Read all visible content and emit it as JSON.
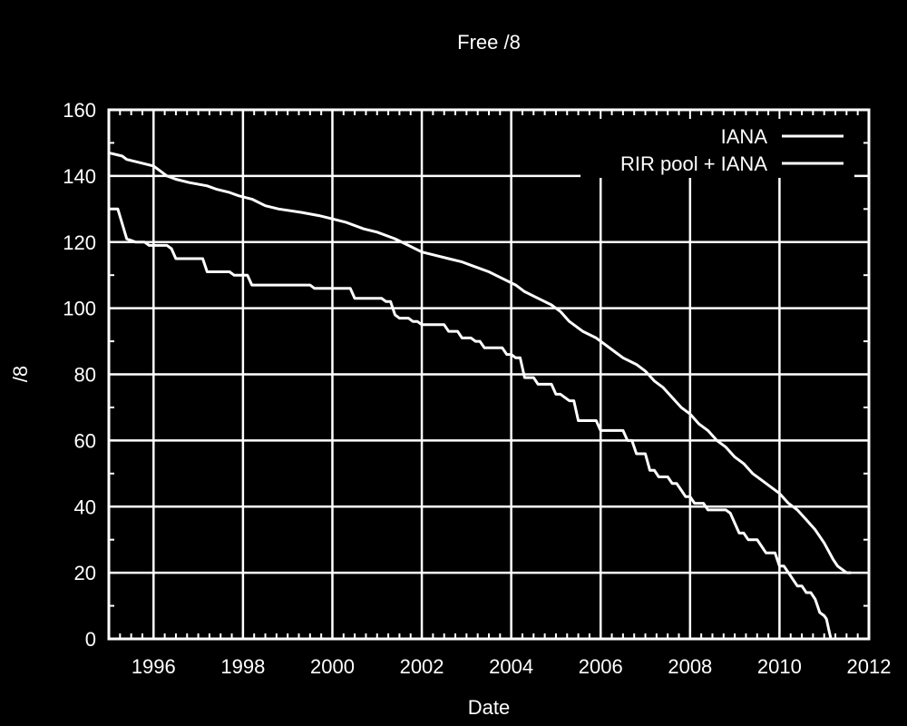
{
  "chart_data": {
    "type": "line",
    "title": "Free /8",
    "xlabel": "Date",
    "ylabel": "/8",
    "xlim": [
      1995,
      2012
    ],
    "ylim": [
      0,
      160
    ],
    "x_ticks": [
      "1996",
      "1998",
      "2000",
      "2002",
      "2004",
      "2006",
      "2008",
      "2010",
      "2012"
    ],
    "y_ticks": [
      "0",
      "20",
      "40",
      "60",
      "80",
      "100",
      "120",
      "140",
      "160"
    ],
    "grid": true,
    "legend_position": "top-right",
    "series": [
      {
        "name": "IANA",
        "points": [
          [
            1995.0,
            130
          ],
          [
            1995.2,
            130
          ],
          [
            1995.4,
            121
          ],
          [
            1995.6,
            120
          ],
          [
            1995.8,
            120
          ],
          [
            1995.9,
            119
          ],
          [
            1996.3,
            119
          ],
          [
            1996.4,
            118
          ],
          [
            1996.5,
            115
          ],
          [
            1997.1,
            115
          ],
          [
            1997.2,
            111
          ],
          [
            1997.7,
            111
          ],
          [
            1997.8,
            110
          ],
          [
            1998.1,
            110
          ],
          [
            1998.2,
            107
          ],
          [
            1999.5,
            107
          ],
          [
            1999.6,
            106
          ],
          [
            2000.4,
            106
          ],
          [
            2000.5,
            103
          ],
          [
            2001.1,
            103
          ],
          [
            2001.2,
            102
          ],
          [
            2001.3,
            102
          ],
          [
            2001.4,
            98
          ],
          [
            2001.5,
            97
          ],
          [
            2001.7,
            97
          ],
          [
            2001.8,
            96
          ],
          [
            2001.9,
            96
          ],
          [
            2002.0,
            95
          ],
          [
            2002.5,
            95
          ],
          [
            2002.6,
            93
          ],
          [
            2002.8,
            93
          ],
          [
            2002.9,
            91
          ],
          [
            2003.1,
            91
          ],
          [
            2003.2,
            90
          ],
          [
            2003.3,
            90
          ],
          [
            2003.4,
            88
          ],
          [
            2003.8,
            88
          ],
          [
            2003.9,
            86
          ],
          [
            2004.0,
            86
          ],
          [
            2004.1,
            85
          ],
          [
            2004.2,
            85
          ],
          [
            2004.3,
            79
          ],
          [
            2004.5,
            79
          ],
          [
            2004.6,
            77
          ],
          [
            2004.9,
            77
          ],
          [
            2005.0,
            74
          ],
          [
            2005.1,
            74
          ],
          [
            2005.3,
            72
          ],
          [
            2005.4,
            72
          ],
          [
            2005.5,
            66
          ],
          [
            2005.9,
            66
          ],
          [
            2006.0,
            63
          ],
          [
            2006.5,
            63
          ],
          [
            2006.6,
            60
          ],
          [
            2006.7,
            60
          ],
          [
            2006.8,
            56
          ],
          [
            2007.0,
            56
          ],
          [
            2007.1,
            51
          ],
          [
            2007.2,
            51
          ],
          [
            2007.3,
            49
          ],
          [
            2007.5,
            49
          ],
          [
            2007.6,
            47
          ],
          [
            2007.7,
            47
          ],
          [
            2007.8,
            45
          ],
          [
            2007.9,
            43
          ],
          [
            2008.0,
            43
          ],
          [
            2008.1,
            41
          ],
          [
            2008.3,
            41
          ],
          [
            2008.4,
            39
          ],
          [
            2008.8,
            39
          ],
          [
            2008.9,
            38
          ],
          [
            2009.0,
            35
          ],
          [
            2009.1,
            32
          ],
          [
            2009.2,
            32
          ],
          [
            2009.3,
            30
          ],
          [
            2009.5,
            30
          ],
          [
            2009.6,
            28
          ],
          [
            2009.7,
            26
          ],
          [
            2009.9,
            26
          ],
          [
            2010.0,
            22
          ],
          [
            2010.1,
            22
          ],
          [
            2010.2,
            20
          ],
          [
            2010.3,
            18
          ],
          [
            2010.4,
            16
          ],
          [
            2010.5,
            16
          ],
          [
            2010.6,
            14
          ],
          [
            2010.7,
            14
          ],
          [
            2010.8,
            12
          ],
          [
            2010.9,
            8
          ],
          [
            2011.0,
            7
          ],
          [
            2011.05,
            6
          ],
          [
            2011.1,
            3
          ],
          [
            2011.15,
            0
          ]
        ]
      },
      {
        "name": "RIR pool + IANA",
        "points": [
          [
            1995.0,
            147
          ],
          [
            1995.3,
            146
          ],
          [
            1995.4,
            145
          ],
          [
            1995.7,
            144
          ],
          [
            1996.0,
            143
          ],
          [
            1996.1,
            142
          ],
          [
            1996.3,
            140
          ],
          [
            1996.5,
            139
          ],
          [
            1996.8,
            138
          ],
          [
            1997.2,
            137
          ],
          [
            1997.4,
            136
          ],
          [
            1997.7,
            135
          ],
          [
            1997.9,
            134
          ],
          [
            1998.2,
            133
          ],
          [
            1998.5,
            131
          ],
          [
            1998.8,
            130
          ],
          [
            1999.3,
            129
          ],
          [
            1999.7,
            128
          ],
          [
            2000.0,
            127
          ],
          [
            2000.3,
            126
          ],
          [
            2000.7,
            124
          ],
          [
            2001.0,
            123
          ],
          [
            2001.4,
            121
          ],
          [
            2001.7,
            119
          ],
          [
            2002.0,
            117
          ],
          [
            2002.3,
            116
          ],
          [
            2002.6,
            115
          ],
          [
            2002.9,
            114
          ],
          [
            2003.1,
            113
          ],
          [
            2003.5,
            111
          ],
          [
            2003.8,
            109
          ],
          [
            2004.1,
            107
          ],
          [
            2004.3,
            105
          ],
          [
            2004.6,
            103
          ],
          [
            2004.9,
            101
          ],
          [
            2005.1,
            99
          ],
          [
            2005.3,
            96
          ],
          [
            2005.6,
            93
          ],
          [
            2005.9,
            91
          ],
          [
            2006.1,
            89
          ],
          [
            2006.3,
            87
          ],
          [
            2006.5,
            85
          ],
          [
            2006.8,
            83
          ],
          [
            2007.0,
            81
          ],
          [
            2007.2,
            78
          ],
          [
            2007.4,
            76
          ],
          [
            2007.6,
            73
          ],
          [
            2007.8,
            70
          ],
          [
            2008.0,
            68
          ],
          [
            2008.2,
            65
          ],
          [
            2008.4,
            63
          ],
          [
            2008.6,
            60
          ],
          [
            2008.8,
            58
          ],
          [
            2009.0,
            55
          ],
          [
            2009.2,
            53
          ],
          [
            2009.4,
            50
          ],
          [
            2009.6,
            48
          ],
          [
            2009.8,
            46
          ],
          [
            2010.0,
            44
          ],
          [
            2010.2,
            41
          ],
          [
            2010.4,
            39
          ],
          [
            2010.6,
            36
          ],
          [
            2010.8,
            33
          ],
          [
            2011.0,
            29
          ],
          [
            2011.2,
            24
          ],
          [
            2011.3,
            22
          ],
          [
            2011.5,
            20
          ],
          [
            2011.6,
            20
          ]
        ]
      }
    ]
  }
}
